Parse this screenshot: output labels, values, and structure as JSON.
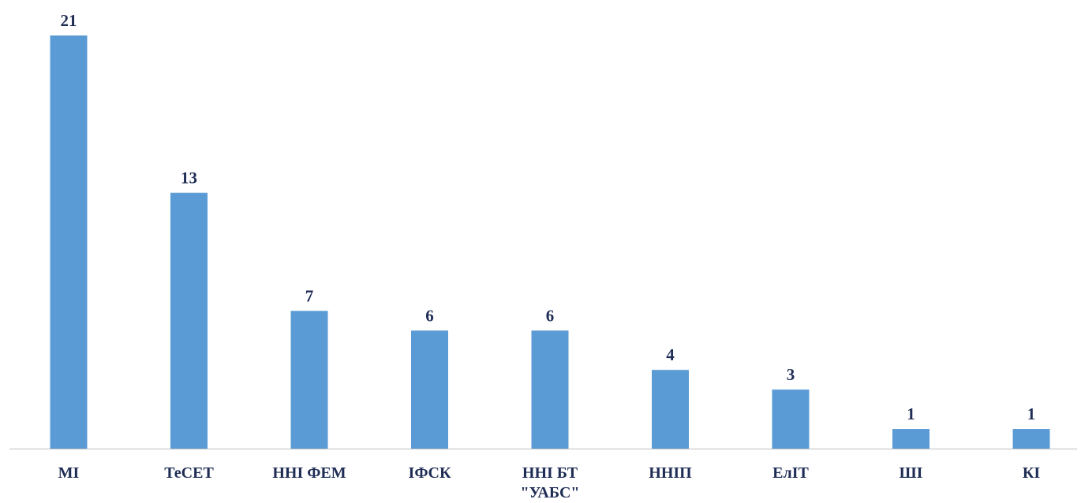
{
  "chart_data": {
    "type": "bar",
    "title": "",
    "xlabel": "",
    "ylabel": "",
    "categories": [
      "МІ",
      "ТеСЕТ",
      "ННІ ФЕМ",
      "ІФСК",
      "ННІ БТ \"УАБС\"",
      "ННІП",
      "ЕлІТ",
      "ШІ",
      "КІ"
    ],
    "category_lines": [
      [
        "МІ"
      ],
      [
        "ТеСЕТ"
      ],
      [
        "ННІ ФЕМ"
      ],
      [
        "ІФСК"
      ],
      [
        "ННІ БТ",
        "\"УАБС\""
      ],
      [
        "ННІП"
      ],
      [
        "ЕлІТ"
      ],
      [
        "ШІ"
      ],
      [
        "КІ"
      ]
    ],
    "values": [
      21,
      13,
      7,
      6,
      6,
      4,
      3,
      1,
      1
    ],
    "ylim": [
      0,
      21
    ],
    "grid": false,
    "legend": "none",
    "data_labels": true,
    "colors": {
      "bar": "#5B9BD5",
      "label": "#1F2D55",
      "axis": "#BFBFBF"
    }
  }
}
